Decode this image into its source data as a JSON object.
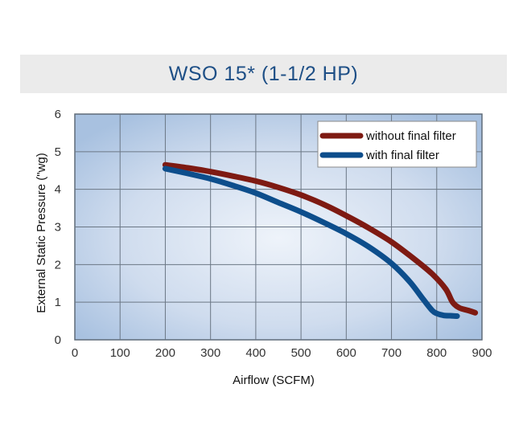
{
  "chart_data": {
    "type": "line",
    "title": "WSO 15* (1-1/2 HP)",
    "xlabel": "Airflow (SCFM)",
    "ylabel": "External Static Pressure (\"wg)",
    "xlim": [
      0,
      900
    ],
    "ylim": [
      0,
      6
    ],
    "xticks": [
      0,
      100,
      200,
      300,
      400,
      500,
      600,
      700,
      800,
      900
    ],
    "yticks": [
      0,
      1,
      2,
      3,
      4,
      5,
      6
    ],
    "grid": true,
    "legend_position": "top-right",
    "series": [
      {
        "name": "without final filter",
        "color": "#7e1a12",
        "x": [
          200,
          250,
          300,
          350,
          400,
          450,
          500,
          550,
          600,
          650,
          700,
          750,
          790,
          820,
          835,
          850,
          870,
          885
        ],
        "y": [
          4.65,
          4.57,
          4.47,
          4.35,
          4.22,
          4.05,
          3.85,
          3.6,
          3.3,
          2.97,
          2.6,
          2.15,
          1.75,
          1.35,
          1.0,
          0.85,
          0.78,
          0.72
        ]
      },
      {
        "name": "with final filter",
        "color": "#0d4e8c",
        "x": [
          200,
          250,
          300,
          350,
          400,
          450,
          500,
          550,
          600,
          650,
          700,
          740,
          770,
          790,
          800,
          815,
          830,
          845
        ],
        "y": [
          4.55,
          4.42,
          4.28,
          4.1,
          3.9,
          3.65,
          3.4,
          3.12,
          2.82,
          2.47,
          2.03,
          1.55,
          1.08,
          0.78,
          0.7,
          0.65,
          0.64,
          0.63
        ]
      }
    ]
  }
}
